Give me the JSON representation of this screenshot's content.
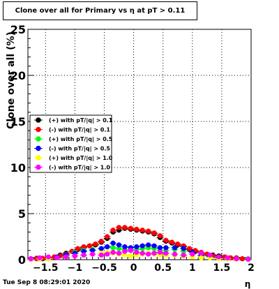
{
  "chart_data": {
    "type": "scatter",
    "title": "Clone  over all for Primary vs   η at pT > 0.11",
    "xlabel": "η",
    "ylabel": "Clone  over all (%)",
    "xlim": [
      -1.8,
      2.0
    ],
    "ylim": [
      0,
      25
    ],
    "x_ticks": [
      -1.5,
      -1,
      -0.5,
      0,
      0.5,
      1,
      1.5,
      2
    ],
    "x_tick_labels": [
      "−1.5",
      "−1",
      "−0.5",
      "0",
      "0.5",
      "1",
      "1.5",
      "2"
    ],
    "y_ticks": [
      0,
      5,
      10,
      15,
      20,
      25
    ],
    "y_tick_labels": [
      "0",
      "5",
      "10",
      "15",
      "20",
      "25"
    ],
    "grid": true,
    "legend_position": "left-middle",
    "series": [
      {
        "name": "(+) with pT/|q| > 0.1",
        "color": "#000000",
        "x": [
          -1.75,
          -1.65,
          -1.55,
          -1.45,
          -1.35,
          -1.25,
          -1.15,
          -1.05,
          -0.95,
          -0.85,
          -0.75,
          -0.65,
          -0.55,
          -0.45,
          -0.35,
          -0.25,
          -0.15,
          -0.05,
          0.05,
          0.15,
          0.25,
          0.35,
          0.45,
          0.55,
          0.65,
          0.75,
          0.85,
          0.95,
          1.05,
          1.15,
          1.25,
          1.35,
          1.45,
          1.55,
          1.65,
          1.75,
          1.85,
          1.95
        ],
        "y": [
          0.1,
          0.15,
          0.1,
          0.2,
          0.3,
          0.5,
          0.7,
          0.9,
          1.1,
          1.3,
          1.5,
          1.6,
          1.9,
          2.3,
          3.0,
          3.2,
          3.4,
          3.3,
          3.2,
          3.1,
          3.0,
          2.8,
          2.4,
          2.0,
          1.8,
          1.6,
          1.4,
          1.1,
          0.9,
          0.7,
          0.6,
          0.5,
          0.4,
          0.3,
          0.2,
          0.2,
          0.1,
          0.1
        ]
      },
      {
        "name": "(-) with pT/|q| > 0.1",
        "color": "#ff0000",
        "x": [
          -1.75,
          -1.65,
          -1.55,
          -1.45,
          -1.35,
          -1.25,
          -1.15,
          -1.05,
          -0.95,
          -0.85,
          -0.75,
          -0.65,
          -0.55,
          -0.45,
          -0.35,
          -0.25,
          -0.15,
          -0.05,
          0.05,
          0.15,
          0.25,
          0.35,
          0.45,
          0.55,
          0.65,
          0.75,
          0.85,
          0.95,
          1.05,
          1.15,
          1.25,
          1.35,
          1.45,
          1.55,
          1.65,
          1.75,
          1.85,
          1.95
        ],
        "y": [
          0.05,
          0.1,
          0.15,
          0.2,
          0.3,
          0.4,
          0.6,
          0.9,
          1.2,
          1.4,
          1.5,
          1.7,
          2.0,
          2.5,
          3.2,
          3.5,
          3.5,
          3.4,
          3.3,
          3.2,
          3.1,
          2.9,
          2.6,
          2.1,
          1.9,
          1.7,
          1.5,
          1.2,
          1.0,
          0.8,
          0.6,
          0.4,
          0.3,
          0.3,
          0.2,
          0.2,
          0.1,
          0.05
        ]
      },
      {
        "name": "(+) with pT/|q| > 0.5",
        "color": "#00ff00",
        "x": [
          -1.75,
          -1.6,
          -1.45,
          -1.3,
          -1.15,
          -1.0,
          -0.85,
          -0.7,
          -0.55,
          -0.45,
          -0.35,
          -0.25,
          -0.15,
          -0.05,
          0.05,
          0.15,
          0.25,
          0.35,
          0.45,
          0.55,
          0.7,
          0.85,
          1.0,
          1.15,
          1.3,
          1.45,
          1.6,
          1.75,
          1.95
        ],
        "y": [
          0.05,
          0.1,
          0.1,
          0.3,
          0.5,
          0.8,
          1.0,
          1.1,
          1.2,
          1.4,
          1.3,
          1.2,
          1.1,
          1.0,
          1.1,
          1.2,
          1.3,
          1.2,
          1.0,
          1.0,
          1.1,
          0.9,
          0.6,
          0.4,
          0.3,
          0.2,
          0.1,
          0.1,
          0.1
        ]
      },
      {
        "name": "(-) with pT/|q| > 0.5",
        "color": "#0000ff",
        "x": [
          -1.75,
          -1.6,
          -1.45,
          -1.3,
          -1.15,
          -1.0,
          -0.85,
          -0.7,
          -0.55,
          -0.45,
          -0.35,
          -0.25,
          -0.15,
          -0.05,
          0.05,
          0.15,
          0.25,
          0.35,
          0.45,
          0.55,
          0.7,
          0.85,
          1.0,
          1.15,
          1.3,
          1.45,
          1.6,
          1.75,
          1.95
        ],
        "y": [
          0.1,
          0.15,
          0.1,
          0.3,
          0.5,
          0.7,
          0.9,
          1.0,
          1.2,
          1.4,
          1.8,
          1.6,
          1.4,
          1.3,
          1.4,
          1.5,
          1.6,
          1.5,
          1.3,
          1.3,
          1.3,
          1.2,
          0.8,
          0.5,
          0.4,
          0.2,
          0.1,
          0.1,
          0.05
        ]
      },
      {
        "name": "(+) with pT/|q| > 1.0",
        "color": "#ffff00",
        "x": [
          -1.75,
          -1.6,
          -1.45,
          -1.3,
          -1.15,
          -1.0,
          -0.85,
          -0.7,
          -0.55,
          -0.45,
          -0.35,
          -0.25,
          -0.15,
          -0.05,
          0.05,
          0.15,
          0.25,
          0.35,
          0.45,
          0.55,
          0.7,
          0.85,
          1.0,
          1.15,
          1.3,
          1.45,
          1.6,
          1.75,
          1.95
        ],
        "y": [
          0.05,
          0.1,
          0.1,
          0.2,
          0.3,
          0.4,
          0.5,
          0.6,
          0.7,
          0.8,
          0.7,
          0.6,
          0.5,
          0.4,
          0.5,
          0.6,
          0.7,
          0.6,
          0.5,
          0.5,
          0.5,
          0.4,
          0.3,
          0.2,
          0.2,
          0.1,
          0.1,
          0.05,
          0.05
        ]
      },
      {
        "name": "(-) with pT/|q| > 1.0",
        "color": "#ff00ff",
        "x": [
          -1.75,
          -1.6,
          -1.45,
          -1.3,
          -1.15,
          -1.0,
          -0.85,
          -0.7,
          -0.55,
          -0.45,
          -0.35,
          -0.25,
          -0.15,
          -0.05,
          0.05,
          0.15,
          0.25,
          0.35,
          0.45,
          0.55,
          0.7,
          0.85,
          1.0,
          1.15,
          1.3,
          1.45,
          1.6,
          1.75,
          1.95
        ],
        "y": [
          0.1,
          0.2,
          0.3,
          0.2,
          0.3,
          0.4,
          0.5,
          0.6,
          0.5,
          0.6,
          0.8,
          0.7,
          0.9,
          1.0,
          0.8,
          0.7,
          0.6,
          0.7,
          0.8,
          0.7,
          0.6,
          0.5,
          0.6,
          0.7,
          0.5,
          0.3,
          0.2,
          0.1,
          0.05
        ]
      }
    ]
  },
  "timestamp": "Tue Sep  8 08:29:01 2020"
}
